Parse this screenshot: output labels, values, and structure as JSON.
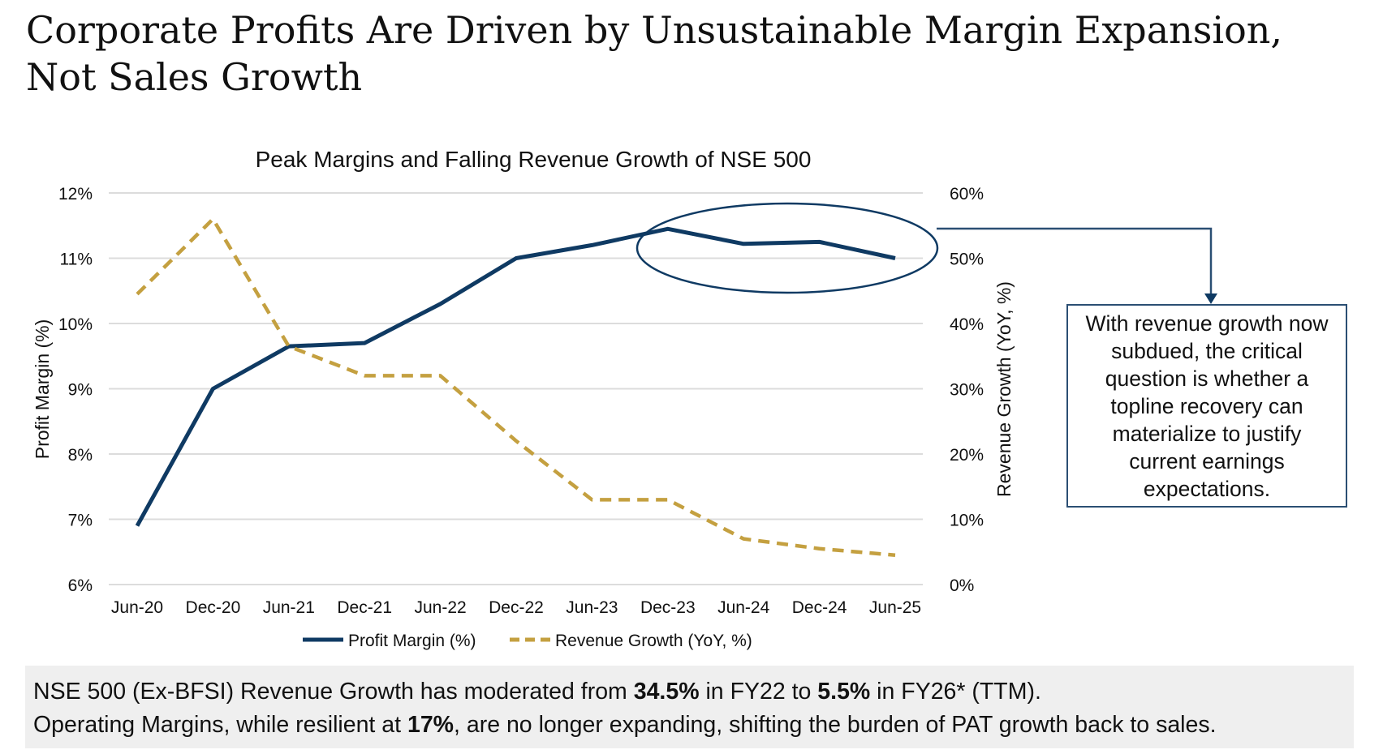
{
  "title": "Corporate Profits Are Driven by Unsustainable Margin Expansion, Not Sales Growth",
  "callout": {
    "text": "With revenue growth now subdued, the critical question is whether a topline recovery can materialize to justify current earnings expectations."
  },
  "summary": {
    "line1": [
      {
        "text": "NSE 500 (Ex-BFSI) Revenue Growth has moderated from ",
        "bold": false
      },
      {
        "text": "34.5%",
        "bold": true
      },
      {
        "text": " in FY22 to ",
        "bold": false
      },
      {
        "text": "5.5%",
        "bold": true
      },
      {
        "text": " in FY26* (TTM).",
        "bold": false
      }
    ],
    "line2": [
      {
        "text": "Operating Margins, while resilient at ",
        "bold": false
      },
      {
        "text": "17%",
        "bold": true
      },
      {
        "text": ", are no longer expanding, shifting the burden of PAT growth back to sales.",
        "bold": false
      }
    ]
  },
  "chart_data": {
    "type": "line",
    "title": "Peak Margins and Falling Revenue Growth of NSE 500",
    "categories": [
      "Jun-20",
      "Dec-20",
      "Jun-21",
      "Dec-21",
      "Jun-22",
      "Dec-22",
      "Jun-23",
      "Dec-23",
      "Jun-24",
      "Dec-24",
      "Jun-25"
    ],
    "ylabel_left": "Profit Margin (%)",
    "ylabel_right": "Revenue Growth (YoY, %)",
    "ylim_left": [
      6,
      12
    ],
    "ylim_right": [
      0,
      60
    ],
    "yticks_left": [
      "6%",
      "7%",
      "8%",
      "9%",
      "10%",
      "11%",
      "12%"
    ],
    "yticks_right": [
      "0%",
      "10%",
      "20%",
      "30%",
      "40%",
      "50%",
      "60%"
    ],
    "grid": true,
    "legend_position": "bottom",
    "series": [
      {
        "name": "Profit Margin (%)",
        "axis": "left",
        "style": "solid",
        "color": "#0f3a63",
        "values": [
          6.9,
          9.0,
          9.65,
          9.7,
          10.3,
          11.0,
          11.2,
          11.45,
          11.22,
          11.25,
          11.0
        ]
      },
      {
        "name": "Revenue Growth (YoY, %)",
        "axis": "right",
        "style": "dashed",
        "color": "#c4a040",
        "values": [
          44.5,
          56,
          36.5,
          32,
          32,
          22,
          13,
          13,
          7,
          5.5,
          4.5
        ]
      }
    ],
    "highlight": {
      "shape": "ellipse",
      "from": "Dec-23",
      "to": "Jun-25"
    }
  }
}
